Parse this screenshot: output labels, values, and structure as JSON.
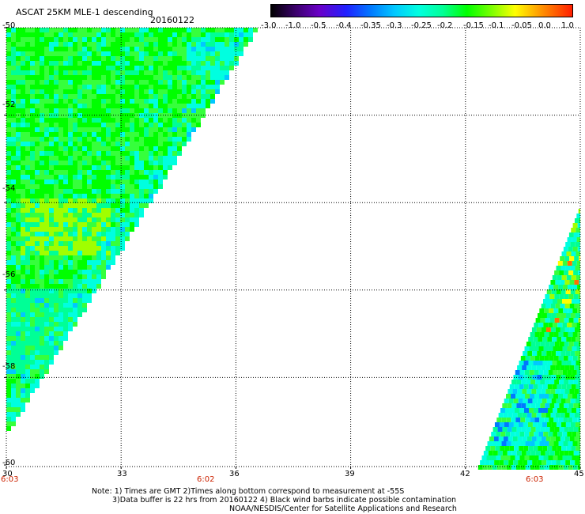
{
  "header": {
    "title": "ASCAT 25KM MLE-1 descending",
    "date": "20160122"
  },
  "colorbar": {
    "ticks": [
      "-3.0",
      "-1.0",
      "-0.5",
      "-0.4",
      "-0.35",
      "-0.3",
      "-0.25",
      "-0.2",
      "-0.15",
      "-0.1",
      "-0.05",
      "0.0",
      "1.0"
    ]
  },
  "axes": {
    "y_ticks": [
      "-50",
      "-52",
      "-54",
      "-56",
      "-58",
      "-60"
    ],
    "x_ticks": [
      "30",
      "33",
      "36",
      "39",
      "42",
      "45"
    ],
    "time_labels": [
      "6:03",
      "6:02",
      "6:03"
    ]
  },
  "map": {
    "lon_range": [
      30,
      45
    ],
    "lat_range": [
      -60,
      -50
    ],
    "colors": {
      "green": "#00ff00",
      "light_green": "#36ff3c",
      "aqua_green": "#00ff96",
      "cyan": "#00ffe0",
      "sky": "#00c8ff",
      "blue": "#0078ff",
      "yellow_green": "#a0ff00",
      "yellow": "#ffff00",
      "orange": "#ff7000"
    }
  },
  "notes": {
    "line1": "Note: 1) Times are GMT 2)Times along bottom correspond to measurement at -55S",
    "line2": "3)Data buffer is 22 hrs from 20160122 4) Black wind barbs indicate possible contamination",
    "line3": "NOAA/NESDIS/Center for Satellite Applications and Research"
  }
}
